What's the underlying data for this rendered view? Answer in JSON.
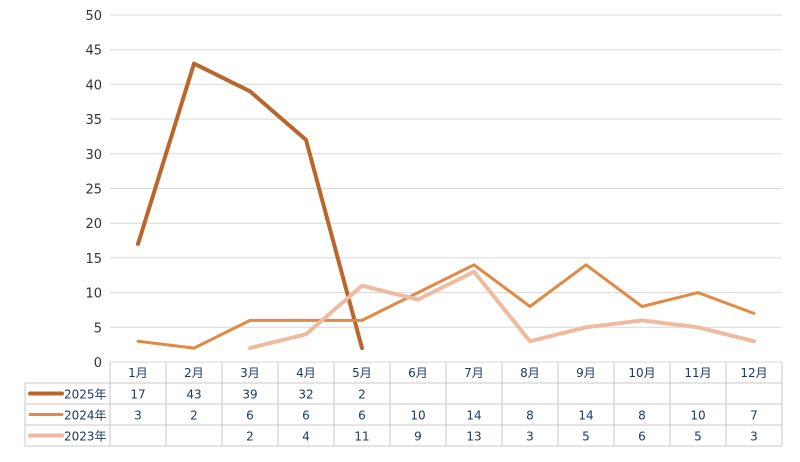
{
  "chart_data": {
    "type": "line",
    "categories": [
      "1月",
      "2月",
      "3月",
      "4月",
      "5月",
      "6月",
      "7月",
      "8月",
      "9月",
      "10月",
      "11月",
      "12月"
    ],
    "ylim": [
      0,
      50
    ],
    "yticks": [
      0,
      5,
      10,
      15,
      20,
      25,
      30,
      35,
      40,
      45,
      50
    ],
    "grid": true,
    "legend": "data-table-left",
    "series": [
      {
        "name": "2025年",
        "color": "#b8672d",
        "width": 4,
        "values": [
          17,
          43,
          39,
          32,
          2,
          null,
          null,
          null,
          null,
          null,
          null,
          null
        ]
      },
      {
        "name": "2024年",
        "color": "#e08a45",
        "width": 3,
        "values": [
          3,
          2,
          6,
          6,
          6,
          10,
          14,
          8,
          14,
          8,
          10,
          7
        ]
      },
      {
        "name": "2023年",
        "color": "#eebba1",
        "width": 4,
        "values": [
          null,
          null,
          2,
          4,
          11,
          9,
          13,
          3,
          5,
          6,
          5,
          3
        ]
      }
    ]
  }
}
